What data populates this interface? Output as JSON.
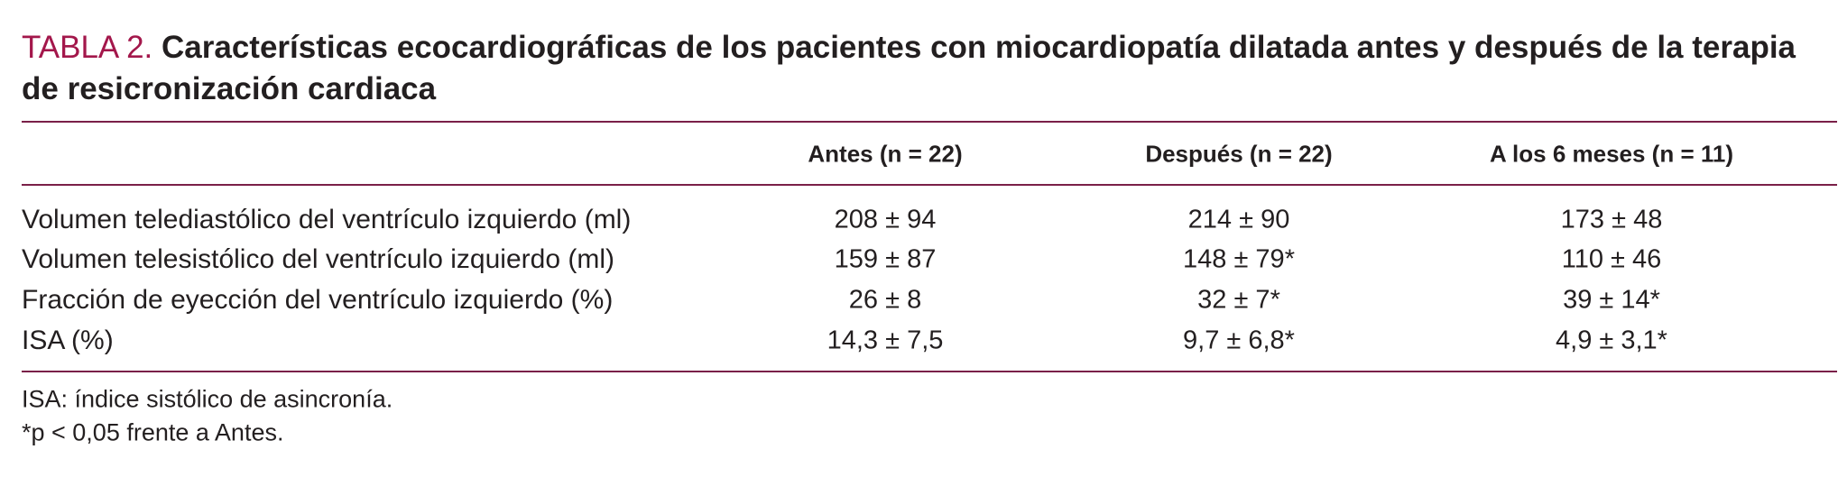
{
  "title": {
    "label": "TABLA 2.",
    "text": "Características ecocardiográficas de los pacientes con miocardiopatía dilatada antes y después de la terapia de resicronización cardiaca"
  },
  "table": {
    "header": [
      "Antes (n = 22)",
      "Después (n = 22)",
      "A los 6 meses (n = 11)"
    ],
    "rows": [
      {
        "label": "Volumen telediastólico del ventrículo izquierdo (ml)",
        "values": [
          "208 ± 94",
          "214 ± 90",
          "173 ± 48"
        ]
      },
      {
        "label": "Volumen telesistólico del ventrículo izquierdo (ml)",
        "values": [
          "159 ± 87",
          "148 ± 79*",
          "110 ± 46"
        ]
      },
      {
        "label": "Fracción de eyección del ventrículo izquierdo (%)",
        "values": [
          "26 ± 8",
          "32 ± 7*",
          "39 ± 14*"
        ]
      },
      {
        "label": "ISA (%)",
        "values": [
          "14,3 ± 7,5",
          "9,7 ± 6,8*",
          "4,9 ± 3,1*"
        ]
      }
    ]
  },
  "footnotes": [
    "ISA: índice sistólico de asincronía.",
    "*p < 0,05 frente a Antes."
  ]
}
